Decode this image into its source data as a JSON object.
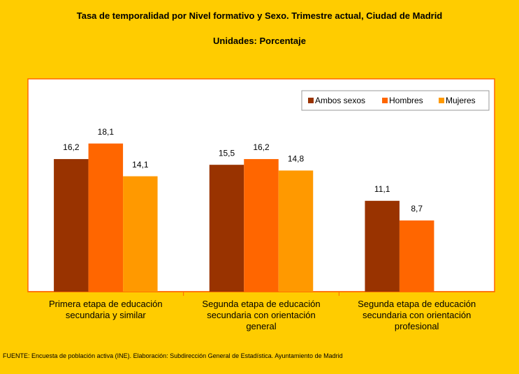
{
  "chart_data": {
    "type": "bar",
    "title": "Tasa de temporalidad por Nivel formativo y Sexo. Trimestre actual, Ciudad de Madrid",
    "subtitle": "Unidades: Porcentaje",
    "categories": [
      "Primera etapa de educación secundaria y similar",
      "Segunda etapa de educación secundaria con orientación general",
      "Segunda etapa de educación secundaria con orientación profesional"
    ],
    "series": [
      {
        "name": "Ambos sexos",
        "color": "#993300",
        "values": [
          16.2,
          15.5,
          11.1
        ],
        "value_labels": [
          "16,2",
          "15,5",
          "11,1"
        ]
      },
      {
        "name": "Hombres",
        "color": "#ff6600",
        "values": [
          18.1,
          16.2,
          8.7
        ],
        "value_labels": [
          "18,1",
          "16,2",
          "8,7"
        ]
      },
      {
        "name": "Mujeres",
        "color": "#ff9900",
        "values": [
          14.1,
          14.8,
          null
        ],
        "value_labels": [
          "14,1",
          "14,8",
          null
        ]
      }
    ],
    "ylim": [
      0,
      26
    ],
    "legend": "top-right",
    "source": "FUENTE: Encuesta de población activa (INE). Elaboración: Subdirección General de Estadística. Ayuntamiento de Madrid"
  }
}
